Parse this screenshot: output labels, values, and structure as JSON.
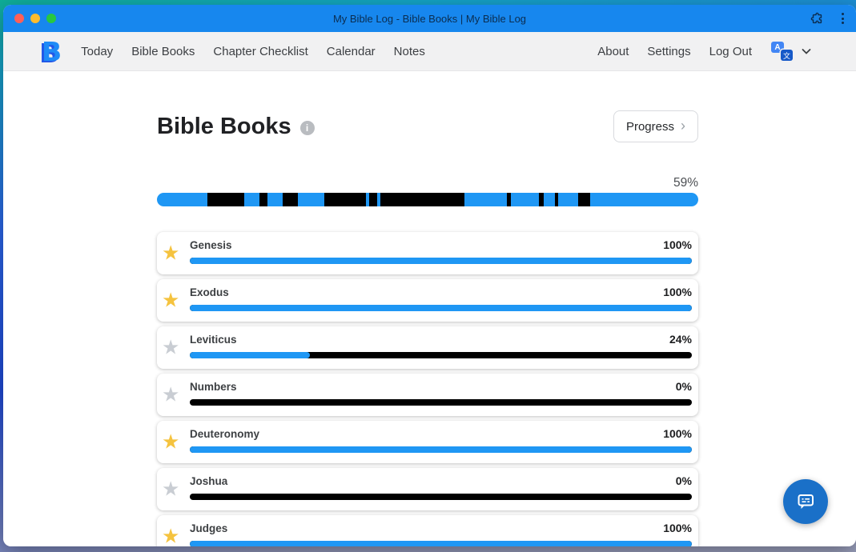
{
  "window": {
    "title": "My Bible Log - Bible Books | My Bible Log"
  },
  "navbar": {
    "logo_text": "B",
    "left_items": [
      "Today",
      "Bible Books",
      "Chapter Checklist",
      "Calendar",
      "Notes"
    ],
    "right_items": [
      "About",
      "Settings",
      "Log Out"
    ]
  },
  "page": {
    "title": "Bible Books",
    "info_glyph": "i",
    "progress_button_label": "Progress",
    "progress_button_chevron": "›",
    "overall_percent_label": "59%"
  },
  "overall_bar": {
    "colors": {
      "read": "#1f97f4",
      "unread": "#000000"
    },
    "segments": [
      {
        "state": "read",
        "width_pct": 9.33
      },
      {
        "state": "unread",
        "width_pct": 6.81
      },
      {
        "state": "read",
        "width_pct": 2.81
      },
      {
        "state": "unread",
        "width_pct": 1.48
      },
      {
        "state": "read",
        "width_pct": 2.81
      },
      {
        "state": "unread",
        "width_pct": 2.81
      },
      {
        "state": "read",
        "width_pct": 4.89
      },
      {
        "state": "unread",
        "width_pct": 7.7
      },
      {
        "state": "read",
        "width_pct": 0.59
      },
      {
        "state": "unread",
        "width_pct": 1.48
      },
      {
        "state": "read",
        "width_pct": 0.59
      },
      {
        "state": "unread",
        "width_pct": 15.56
      },
      {
        "state": "read",
        "width_pct": 7.85
      },
      {
        "state": "unread",
        "width_pct": 0.74
      },
      {
        "state": "read",
        "width_pct": 5.19
      },
      {
        "state": "unread",
        "width_pct": 0.89
      },
      {
        "state": "read",
        "width_pct": 2.07
      },
      {
        "state": "unread",
        "width_pct": 0.59
      },
      {
        "state": "read",
        "width_pct": 3.7
      },
      {
        "state": "unread",
        "width_pct": 2.22
      },
      {
        "state": "read",
        "width_pct": 19.85
      }
    ]
  },
  "books": [
    {
      "name": "Genesis",
      "percent_label": "100%",
      "percent": 100,
      "starred": true
    },
    {
      "name": "Exodus",
      "percent_label": "100%",
      "percent": 100,
      "starred": true
    },
    {
      "name": "Leviticus",
      "percent_label": "24%",
      "percent": 24,
      "starred": false
    },
    {
      "name": "Numbers",
      "percent_label": "0%",
      "percent": 0,
      "starred": false
    },
    {
      "name": "Deuteronomy",
      "percent_label": "100%",
      "percent": 100,
      "starred": true
    },
    {
      "name": "Joshua",
      "percent_label": "0%",
      "percent": 0,
      "starred": false
    },
    {
      "name": "Judges",
      "percent_label": "100%",
      "percent": 100,
      "starred": true
    }
  ],
  "icons": {
    "star_glyph": "★",
    "translate_back_letter": "A",
    "translate_front_letter": "文"
  },
  "colors": {
    "titlebar_blue": "#1787ee",
    "progress_blue": "#1f97f4",
    "progress_black": "#000000",
    "star_gold": "#f5c33f",
    "star_gray": "#c9cdd3",
    "chat_button_blue": "#1a70c8"
  }
}
